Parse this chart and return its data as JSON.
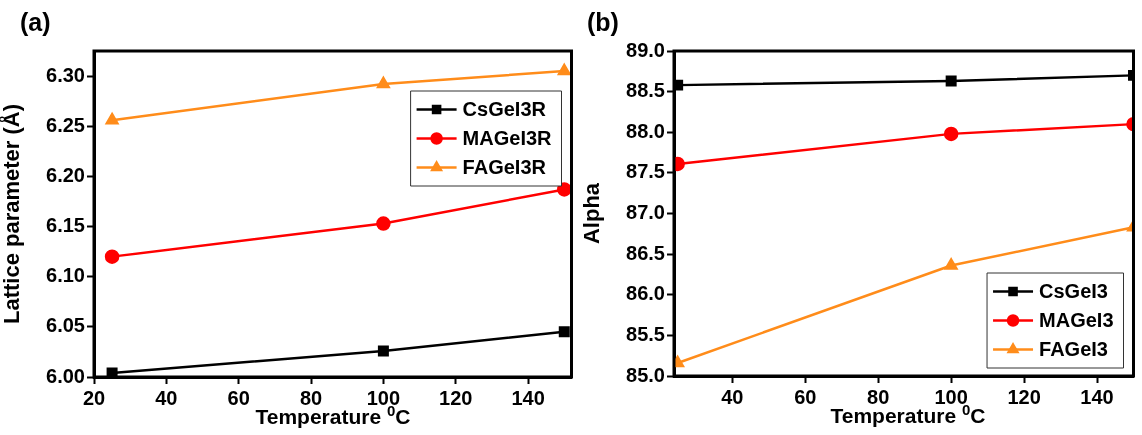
{
  "chart_data": [
    {
      "type": "line",
      "title": "(a)",
      "xlabel": "Temperature $^{0}$C",
      "ylabel": "Lattice parameter (Å)",
      "x": [
        25,
        100,
        150
      ],
      "series": [
        {
          "name": "CsGeI3R",
          "color": "#000000",
          "marker": "square",
          "values": [
            6.004,
            6.026,
            6.045
          ]
        },
        {
          "name": "MAGeI3R",
          "color": "#ff0000",
          "marker": "circle",
          "values": [
            6.12,
            6.153,
            6.187
          ]
        },
        {
          "name": "FAGeI3R",
          "color": "#ff8c1a",
          "marker": "triangle",
          "values": [
            6.256,
            6.292,
            6.305
          ]
        }
      ],
      "xlim": [
        20,
        152
      ],
      "xticks": [
        20,
        40,
        60,
        80,
        100,
        120,
        140
      ],
      "ylim": [
        6.0,
        6.325
      ],
      "yticks": [
        {
          "value": 6.0,
          "label": "6.00"
        },
        {
          "value": 6.05,
          "label": "6.05"
        },
        {
          "value": 6.1,
          "label": "6.10"
        },
        {
          "value": 6.15,
          "label": "6.15"
        },
        {
          "value": 6.2,
          "label": "6.20"
        },
        {
          "value": 6.25,
          "label": "6.25"
        },
        {
          "value": 6.3,
          "label": "6.30"
        }
      ],
      "grid": false,
      "legend": "top right",
      "line_style": "solid"
    },
    {
      "type": "line",
      "title": "(b)",
      "xlabel": "Temperature $^{0}$C",
      "ylabel": "Alpha",
      "x": [
        25,
        100,
        150
      ],
      "series": [
        {
          "name": "CsGeI3",
          "color": "#000000",
          "marker": "square",
          "values": [
            88.58,
            88.63,
            88.7
          ]
        },
        {
          "name": "MAGeI3",
          "color": "#ff0000",
          "marker": "circle",
          "values": [
            87.61,
            87.98,
            88.1
          ]
        },
        {
          "name": "FAGeI3",
          "color": "#ff8c1a",
          "marker": "triangle",
          "values": [
            85.16,
            86.36,
            86.83
          ]
        }
      ],
      "xlim": [
        24,
        150
      ],
      "xticks": [
        40,
        60,
        80,
        100,
        120,
        140
      ],
      "ylim": [
        85.0,
        89.0
      ],
      "yticks": [
        {
          "value": 85.0,
          "label": "85.0"
        },
        {
          "value": 85.5,
          "label": "85.5"
        },
        {
          "value": 86.0,
          "label": "86.0"
        },
        {
          "value": 86.5,
          "label": "86.5"
        },
        {
          "value": 87.0,
          "label": "87.0"
        },
        {
          "value": 87.5,
          "label": "87.5"
        },
        {
          "value": 88.0,
          "label": "88.0"
        },
        {
          "value": 88.5,
          "label": "88.5"
        },
        {
          "value": 89.0,
          "label": "89.0"
        }
      ],
      "grid": false,
      "legend": "bottom right",
      "line_style": "solid"
    }
  ]
}
